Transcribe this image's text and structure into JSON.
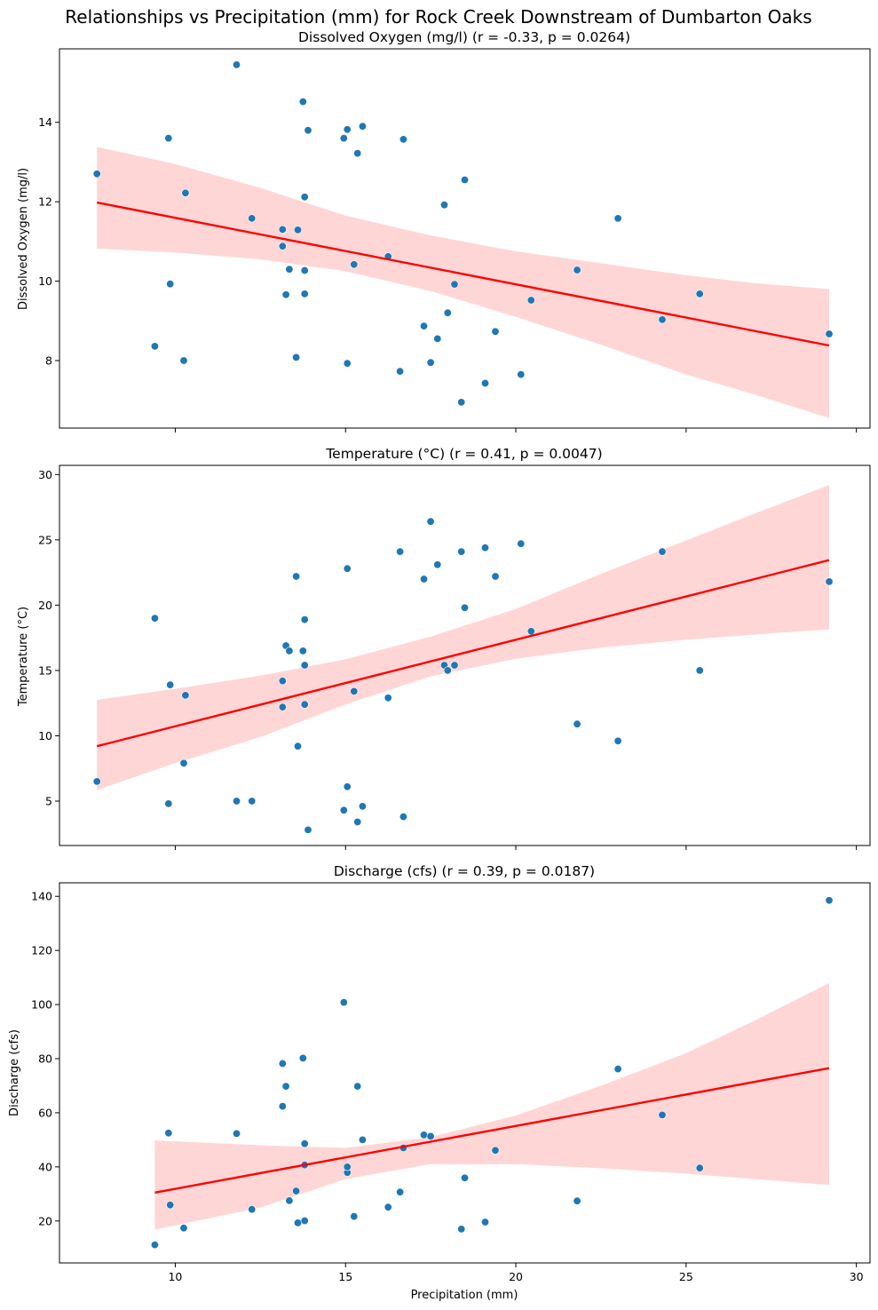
{
  "title": "Relationships vs Precipitation (mm) for Rock Creek Downstream of Dumbarton Oaks",
  "chart_data": [
    {
      "type": "scatter",
      "title": "Dissolved Oxygen (mg/l) (r = -0.33, p = 0.0264)",
      "xlabel": "",
      "ylabel": "Dissolved Oxygen (mg/l)",
      "xlim": [
        6.6,
        30.4
      ],
      "ylim": [
        6.3,
        15.85
      ],
      "xticks": [
        10,
        15,
        20,
        25,
        30
      ],
      "xtick_labels": [
        "",
        "",
        "",
        "",
        ""
      ],
      "yticks": [
        8,
        10,
        12,
        14
      ],
      "ytick_labels": [
        "8",
        "10",
        "12",
        "14"
      ],
      "points": [
        [
          7.7,
          12.7
        ],
        [
          9.4,
          8.36
        ],
        [
          9.8,
          13.6
        ],
        [
          9.85,
          9.93
        ],
        [
          10.25,
          8.0
        ],
        [
          10.3,
          12.22
        ],
        [
          11.8,
          15.45
        ],
        [
          12.25,
          11.58
        ],
        [
          13.15,
          11.3
        ],
        [
          13.15,
          10.88
        ],
        [
          13.25,
          9.66
        ],
        [
          13.35,
          10.3
        ],
        [
          13.55,
          8.08
        ],
        [
          13.6,
          11.29
        ],
        [
          13.75,
          14.52
        ],
        [
          13.8,
          9.68
        ],
        [
          13.8,
          10.27
        ],
        [
          13.8,
          12.12
        ],
        [
          13.9,
          13.8
        ],
        [
          14.95,
          13.6
        ],
        [
          15.05,
          7.93
        ],
        [
          15.05,
          13.82
        ],
        [
          15.25,
          10.42
        ],
        [
          15.35,
          13.22
        ],
        [
          15.5,
          13.9
        ],
        [
          16.25,
          10.62
        ],
        [
          16.6,
          7.73
        ],
        [
          16.7,
          13.57
        ],
        [
          17.3,
          8.87
        ],
        [
          17.5,
          7.95
        ],
        [
          17.7,
          8.55
        ],
        [
          17.9,
          11.92
        ],
        [
          18.0,
          9.2
        ],
        [
          18.2,
          9.92
        ],
        [
          18.4,
          6.95
        ],
        [
          18.5,
          12.55
        ],
        [
          19.1,
          7.43
        ],
        [
          19.4,
          8.73
        ],
        [
          20.15,
          7.65
        ],
        [
          20.45,
          9.52
        ],
        [
          21.8,
          10.28
        ],
        [
          23.0,
          11.58
        ],
        [
          24.3,
          9.03
        ],
        [
          25.4,
          9.68
        ],
        [
          29.2,
          8.67
        ]
      ],
      "regression": {
        "x": [
          7.7,
          29.2
        ],
        "y": [
          11.98,
          8.38
        ]
      },
      "band_upper": [
        [
          7.7,
          13.38
        ],
        [
          10,
          12.95
        ],
        [
          12.5,
          12.35
        ],
        [
          15,
          11.65
        ],
        [
          17.5,
          11.15
        ],
        [
          20,
          10.75
        ],
        [
          22.5,
          10.45
        ],
        [
          25,
          10.15
        ],
        [
          27,
          9.95
        ],
        [
          29.2,
          9.8
        ]
      ],
      "band_lower": [
        [
          7.7,
          10.82
        ],
        [
          10,
          10.72
        ],
        [
          12.5,
          10.55
        ],
        [
          15,
          10.25
        ],
        [
          17.5,
          9.75
        ],
        [
          20,
          9.1
        ],
        [
          22.5,
          8.4
        ],
        [
          25,
          7.65
        ],
        [
          27,
          7.15
        ],
        [
          29.2,
          6.55
        ]
      ]
    },
    {
      "type": "scatter",
      "title": "Temperature (°C) (r = 0.41, p = 0.0047)",
      "xlabel": "",
      "ylabel": "Temperature (°C)",
      "xlim": [
        6.6,
        30.4
      ],
      "ylim": [
        1.6,
        30.7
      ],
      "xticks": [
        10,
        15,
        20,
        25,
        30
      ],
      "xtick_labels": [
        "",
        "",
        "",
        "",
        ""
      ],
      "yticks": [
        5,
        10,
        15,
        20,
        25,
        30
      ],
      "ytick_labels": [
        "5",
        "10",
        "15",
        "20",
        "25",
        "30"
      ],
      "points": [
        [
          7.7,
          6.5
        ],
        [
          9.4,
          19.0
        ],
        [
          9.8,
          4.8
        ],
        [
          9.85,
          13.9
        ],
        [
          10.25,
          7.9
        ],
        [
          10.3,
          13.1
        ],
        [
          11.8,
          5.0
        ],
        [
          12.25,
          5.0
        ],
        [
          13.15,
          14.2
        ],
        [
          13.15,
          12.2
        ],
        [
          13.25,
          16.9
        ],
        [
          13.35,
          16.5
        ],
        [
          13.55,
          22.2
        ],
        [
          13.6,
          9.2
        ],
        [
          13.75,
          16.5
        ],
        [
          13.8,
          15.4
        ],
        [
          13.8,
          12.4
        ],
        [
          13.8,
          18.9
        ],
        [
          13.9,
          2.8
        ],
        [
          14.95,
          4.3
        ],
        [
          15.05,
          22.8
        ],
        [
          15.05,
          6.1
        ],
        [
          15.25,
          13.4
        ],
        [
          15.35,
          3.4
        ],
        [
          15.5,
          4.6
        ],
        [
          16.25,
          12.9
        ],
        [
          16.6,
          24.1
        ],
        [
          16.7,
          3.8
        ],
        [
          17.3,
          22.0
        ],
        [
          17.5,
          26.4
        ],
        [
          17.7,
          23.1
        ],
        [
          17.9,
          15.4
        ],
        [
          18.0,
          15.0
        ],
        [
          18.2,
          15.4
        ],
        [
          18.4,
          24.1
        ],
        [
          18.5,
          19.8
        ],
        [
          19.1,
          24.4
        ],
        [
          19.4,
          22.2
        ],
        [
          20.15,
          24.7
        ],
        [
          20.45,
          18.0
        ],
        [
          21.8,
          10.9
        ],
        [
          23.0,
          9.6
        ],
        [
          24.3,
          24.1
        ],
        [
          25.4,
          15.0
        ],
        [
          29.2,
          21.8
        ]
      ],
      "regression": {
        "x": [
          7.7,
          29.2
        ],
        "y": [
          9.2,
          23.45
        ]
      },
      "band_upper": [
        [
          7.7,
          12.75
        ],
        [
          10,
          13.6
        ],
        [
          12.5,
          14.6
        ],
        [
          15,
          15.85
        ],
        [
          17.5,
          17.6
        ],
        [
          20,
          19.7
        ],
        [
          22.5,
          22.4
        ],
        [
          25,
          24.95
        ],
        [
          27,
          27.0
        ],
        [
          29.2,
          29.2
        ]
      ],
      "band_lower": [
        [
          7.7,
          5.85
        ],
        [
          10,
          7.9
        ],
        [
          12.5,
          9.9
        ],
        [
          15,
          12.4
        ],
        [
          17.5,
          14.55
        ],
        [
          20,
          15.9
        ],
        [
          22.5,
          16.75
        ],
        [
          25,
          17.35
        ],
        [
          27,
          17.75
        ],
        [
          29.2,
          18.15
        ]
      ]
    },
    {
      "type": "scatter",
      "title": "Discharge (cfs) (r = 0.39, p = 0.0187)",
      "xlabel": "Precipitation (mm)",
      "ylabel": "Discharge (cfs)",
      "xlim": [
        6.6,
        30.4
      ],
      "ylim": [
        4.5,
        145
      ],
      "xticks": [
        10,
        15,
        20,
        25,
        30
      ],
      "xtick_labels": [
        "10",
        "15",
        "20",
        "25",
        "30"
      ],
      "yticks": [
        20,
        40,
        60,
        80,
        100,
        120,
        140
      ],
      "ytick_labels": [
        "20",
        "40",
        "60",
        "80",
        "100",
        "120",
        "140"
      ],
      "points": [
        [
          9.4,
          11.2
        ],
        [
          9.8,
          52.5
        ],
        [
          9.85,
          25.9
        ],
        [
          10.25,
          17.4
        ],
        [
          11.8,
          52.3
        ],
        [
          12.25,
          24.3
        ],
        [
          13.15,
          78.2
        ],
        [
          13.15,
          62.4
        ],
        [
          13.25,
          69.8
        ],
        [
          13.35,
          27.5
        ],
        [
          13.55,
          31.1
        ],
        [
          13.6,
          19.3
        ],
        [
          13.75,
          80.2
        ],
        [
          13.8,
          48.6
        ],
        [
          13.8,
          40.7
        ],
        [
          13.8,
          20.1
        ],
        [
          14.95,
          100.8
        ],
        [
          15.05,
          37.9
        ],
        [
          15.05,
          40.0
        ],
        [
          15.25,
          21.7
        ],
        [
          15.35,
          69.8
        ],
        [
          15.5,
          50.0
        ],
        [
          16.25,
          25.1
        ],
        [
          16.6,
          30.7
        ],
        [
          16.7,
          47.0
        ],
        [
          17.3,
          51.8
        ],
        [
          17.5,
          51.3
        ],
        [
          18.4,
          17.0
        ],
        [
          18.5,
          35.9
        ],
        [
          19.1,
          19.6
        ],
        [
          19.4,
          46.1
        ],
        [
          21.8,
          27.4
        ],
        [
          23.0,
          76.2
        ],
        [
          24.3,
          59.2
        ],
        [
          25.4,
          39.6
        ],
        [
          29.2,
          138.5
        ]
      ],
      "regression": {
        "x": [
          9.4,
          29.2
        ],
        "y": [
          30.5,
          76.5
        ]
      },
      "band_upper": [
        [
          9.4,
          49.8
        ],
        [
          12.5,
          48.0
        ],
        [
          15,
          47.0
        ],
        [
          17.5,
          51.0
        ],
        [
          20,
          59.0
        ],
        [
          22.5,
          70.0
        ],
        [
          25,
          82.0
        ],
        [
          27,
          94.0
        ],
        [
          29.2,
          108.0
        ]
      ],
      "band_lower": [
        [
          9.4,
          16.8
        ],
        [
          12.5,
          25.0
        ],
        [
          15,
          35.5
        ],
        [
          17.5,
          41.0
        ],
        [
          20,
          41.0
        ],
        [
          22.5,
          39.5
        ],
        [
          25,
          37.5
        ],
        [
          27,
          35.5
        ],
        [
          29.2,
          33.3
        ]
      ]
    }
  ]
}
